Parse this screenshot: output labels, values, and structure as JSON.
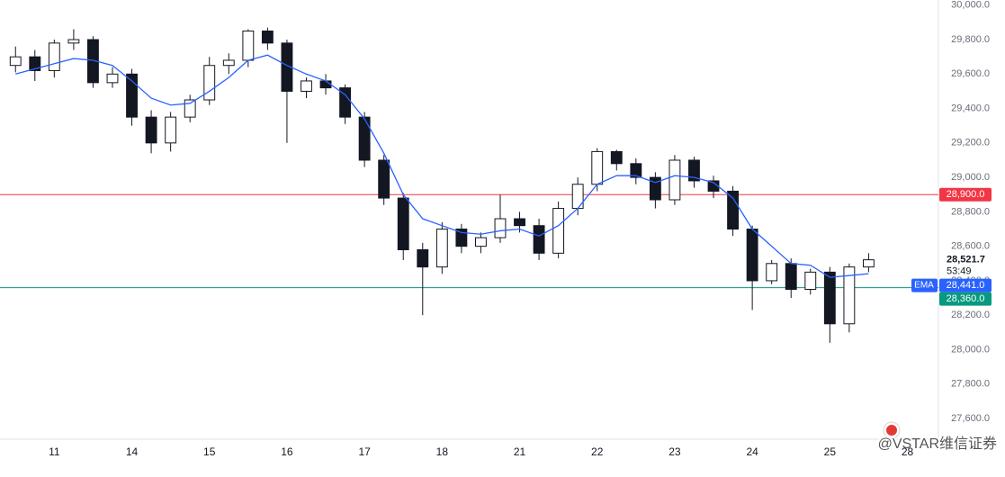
{
  "chart_data": {
    "type": "candlestick",
    "x": [
      -0.5,
      -0.25,
      0,
      0.25,
      0.5,
      0.75,
      1,
      1.25,
      1.5,
      1.75,
      2,
      2.25,
      2.5,
      2.75,
      3,
      3.25,
      3.5,
      3.75,
      4,
      4.25,
      4.5,
      4.75,
      5,
      5.25,
      5.5,
      5.75,
      6,
      6.25,
      6.5,
      6.75,
      7,
      7.25,
      7.5,
      7.75,
      8,
      8.25,
      8.5,
      8.75,
      9,
      9.25,
      9.5,
      9.75,
      10,
      10.25,
      10.5
    ],
    "open": [
      29650,
      29700,
      29620,
      29780,
      29800,
      29550,
      29600,
      29350,
      29200,
      29350,
      29450,
      29650,
      29680,
      29850,
      29780,
      29500,
      29560,
      29520,
      29350,
      29100,
      28880,
      28580,
      28480,
      28700,
      28600,
      28650,
      28760,
      28720,
      28560,
      28820,
      28960,
      29150,
      29080,
      29000,
      28870,
      29100,
      28980,
      28920,
      28700,
      28400,
      28500,
      28350,
      28450,
      28150,
      28480
    ],
    "high": [
      29760,
      29740,
      29800,
      29860,
      29820,
      29640,
      29630,
      29390,
      29380,
      29480,
      29700,
      29720,
      29860,
      29870,
      29800,
      29580,
      29600,
      29540,
      29380,
      29130,
      28910,
      28620,
      28740,
      28730,
      28680,
      28900,
      28800,
      28760,
      28860,
      29000,
      29170,
      29160,
      29110,
      29030,
      29130,
      29120,
      29010,
      28950,
      28720,
      28520,
      28530,
      28470,
      28480,
      28500,
      28560
    ],
    "low": [
      29610,
      29560,
      29580,
      29740,
      29520,
      29520,
      29300,
      29140,
      29150,
      29320,
      29420,
      29600,
      29640,
      29740,
      29200,
      29460,
      29480,
      29310,
      29060,
      28840,
      28520,
      28200,
      28440,
      28560,
      28560,
      28620,
      28680,
      28520,
      28530,
      28780,
      28920,
      29040,
      28960,
      28820,
      28840,
      28940,
      28880,
      28660,
      28230,
      28380,
      28300,
      28320,
      28040,
      28100,
      28450
    ],
    "close": [
      29700,
      29620,
      29780,
      29800,
      29550,
      29600,
      29350,
      29200,
      29350,
      29450,
      29650,
      29680,
      29850,
      29780,
      29500,
      29560,
      29520,
      29350,
      29100,
      28880,
      28580,
      28480,
      28700,
      28600,
      28650,
      28760,
      28720,
      28560,
      28820,
      28960,
      29150,
      29080,
      29000,
      28870,
      29100,
      28980,
      28920,
      28700,
      28400,
      28500,
      28350,
      28450,
      28150,
      28480,
      28521.7
    ],
    "close_label": "28,521.7",
    "countdown": "53:49",
    "series": [
      {
        "name": "EMA",
        "color": "#2962ff",
        "value_label": "28,441.0",
        "values": [
          29600,
          29630,
          29660,
          29690,
          29680,
          29650,
          29560,
          29460,
          29420,
          29430,
          29500,
          29580,
          29680,
          29710,
          29650,
          29600,
          29560,
          29480,
          29340,
          29140,
          28900,
          28760,
          28720,
          28680,
          28670,
          28690,
          28700,
          28660,
          28720,
          28820,
          28960,
          29010,
          29010,
          28970,
          29010,
          29000,
          28970,
          28880,
          28700,
          28600,
          28500,
          28490,
          28420,
          28430,
          28441
        ]
      }
    ],
    "hlines": [
      {
        "value": 28900,
        "label": "28,900.0",
        "color": "#f23645"
      },
      {
        "value": 28360,
        "label": "28,360.0",
        "color": "#089981"
      }
    ],
    "ylim": [
      27480,
      30030
    ],
    "yticks": [
      {
        "value": 30000,
        "label": "30,000.0"
      },
      {
        "value": 29800,
        "label": "29,800.0"
      },
      {
        "value": 29600,
        "label": "29,600.0"
      },
      {
        "value": 29400,
        "label": "29,400.0"
      },
      {
        "value": 29200,
        "label": "29,200.0"
      },
      {
        "value": 29000,
        "label": "29,000.0"
      },
      {
        "value": 28800,
        "label": "28,800.0"
      },
      {
        "value": 28600,
        "label": "28,600.0"
      },
      {
        "value": 28400,
        "label": "28,400.0"
      },
      {
        "value": 28200,
        "label": "28,200.0"
      },
      {
        "value": 28000,
        "label": "28,000.0"
      },
      {
        "value": 27800,
        "label": "27,800.0"
      },
      {
        "value": 27600,
        "label": "27,600.0"
      }
    ],
    "xlim": [
      -0.7,
      11.4
    ],
    "xticks": [
      {
        "value": 0,
        "label": "11"
      },
      {
        "value": 1,
        "label": "14"
      },
      {
        "value": 2,
        "label": "15"
      },
      {
        "value": 3,
        "label": "16"
      },
      {
        "value": 4,
        "label": "17"
      },
      {
        "value": 5,
        "label": "18"
      },
      {
        "value": 6,
        "label": "21"
      },
      {
        "value": 7,
        "label": "22"
      },
      {
        "value": 8,
        "label": "23"
      },
      {
        "value": 9,
        "label": "24"
      },
      {
        "value": 10,
        "label": "25"
      },
      {
        "value": 11,
        "label": "28"
      }
    ],
    "watermark": "@VSTAR维信证券"
  }
}
